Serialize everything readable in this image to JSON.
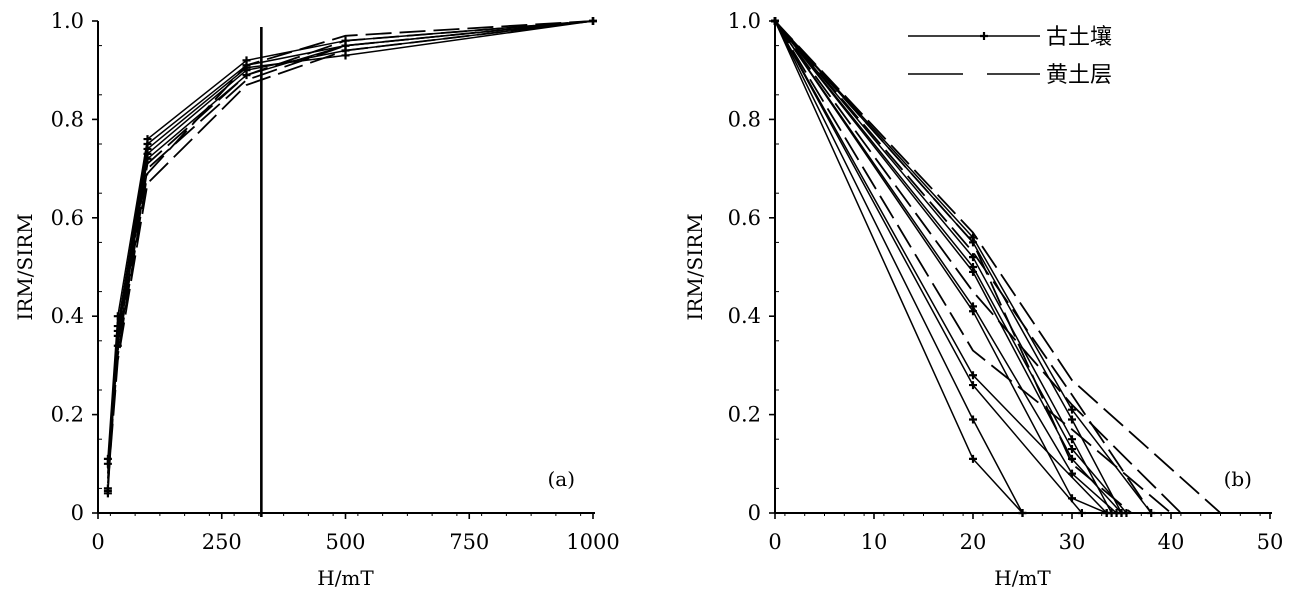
{
  "chart_data": [
    {
      "type": "line",
      "panel_label": "(a)",
      "xlabel": "H/mT",
      "ylabel": "IRM/SIRM",
      "xlim": [
        0,
        1000
      ],
      "ylim": [
        0,
        1.0
      ],
      "xticks": [
        "0",
        "250",
        "500",
        "750",
        "1000"
      ],
      "yticks": [
        "0",
        "0.2",
        "0.4",
        "0.6",
        "0.8",
        "1.0"
      ],
      "reference_line_x": 330,
      "series": [
        {
          "style": "solid",
          "markers": true,
          "x": [
            20,
            40,
            100,
            300,
            500,
            1000
          ],
          "y": [
            0.05,
            0.38,
            0.75,
            0.91,
            0.95,
            1.0
          ]
        },
        {
          "style": "solid",
          "markers": true,
          "x": [
            20,
            40,
            100,
            300,
            500,
            1000
          ],
          "y": [
            0.11,
            0.4,
            0.76,
            0.92,
            0.96,
            1.0
          ]
        },
        {
          "style": "solid",
          "markers": true,
          "x": [
            20,
            40,
            100,
            300,
            500,
            1000
          ],
          "y": [
            0.04,
            0.36,
            0.73,
            0.9,
            0.94,
            1.0
          ]
        },
        {
          "style": "solid",
          "markers": true,
          "x": [
            20,
            40,
            100,
            300,
            500,
            1000
          ],
          "y": [
            0.1,
            0.34,
            0.72,
            0.89,
            0.95,
            1.0
          ]
        },
        {
          "style": "solid",
          "markers": true,
          "x": [
            20,
            40,
            100,
            300,
            500,
            1000
          ],
          "y": [
            0.045,
            0.37,
            0.74,
            0.905,
            0.93,
            1.0
          ]
        },
        {
          "style": "dashed",
          "markers": false,
          "x": [
            20,
            40,
            100,
            300,
            500,
            1000
          ],
          "y": [
            0.09,
            0.33,
            0.7,
            0.88,
            0.95,
            1.0
          ]
        },
        {
          "style": "dashed",
          "markers": false,
          "x": [
            20,
            40,
            100,
            300,
            500,
            1000
          ],
          "y": [
            0.06,
            0.31,
            0.67,
            0.87,
            0.94,
            1.0
          ]
        },
        {
          "style": "dashed",
          "markers": false,
          "x": [
            20,
            40,
            100,
            300,
            500,
            1000
          ],
          "y": [
            0.08,
            0.35,
            0.71,
            0.89,
            0.96,
            1.0
          ]
        },
        {
          "style": "dashed",
          "markers": false,
          "x": [
            20,
            40,
            100,
            300,
            500,
            1000
          ],
          "y": [
            0.07,
            0.32,
            0.69,
            0.91,
            0.97,
            1.0
          ]
        }
      ]
    },
    {
      "type": "line",
      "panel_label": "(b)",
      "xlabel": "H/mT",
      "ylabel": "IRM/SIRM",
      "xlim": [
        0,
        50
      ],
      "ylim": [
        0,
        1.0
      ],
      "xticks": [
        "0",
        "10",
        "20",
        "30",
        "40",
        "50"
      ],
      "yticks": [
        "0",
        "0.2",
        "0.4",
        "0.6",
        "0.8",
        "1.0"
      ],
      "legend": [
        {
          "label": "古土壤",
          "style": "solid",
          "markers": true
        },
        {
          "label": "黄土层",
          "style": "dashed",
          "markers": false
        }
      ],
      "legend_position": "top",
      "series": [
        {
          "style": "solid",
          "markers": true,
          "x": [
            0,
            20,
            25
          ],
          "y": [
            1.0,
            0.11,
            0.0
          ]
        },
        {
          "style": "solid",
          "markers": true,
          "x": [
            0,
            20,
            25
          ],
          "y": [
            1.0,
            0.19,
            0.0
          ]
        },
        {
          "style": "solid",
          "markers": true,
          "x": [
            0,
            20,
            31
          ],
          "y": [
            1.0,
            0.26,
            0.0
          ]
        },
        {
          "style": "solid",
          "markers": true,
          "x": [
            0,
            20,
            33.5
          ],
          "y": [
            1.0,
            0.28,
            0.0
          ]
        },
        {
          "style": "solid",
          "markers": true,
          "x": [
            0,
            20,
            30,
            33.5
          ],
          "y": [
            1.0,
            0.41,
            0.03,
            0.0
          ]
        },
        {
          "style": "solid",
          "markers": true,
          "x": [
            0,
            20,
            30,
            34.5
          ],
          "y": [
            1.0,
            0.42,
            0.08,
            0.0
          ]
        },
        {
          "style": "solid",
          "markers": true,
          "x": [
            0,
            20,
            30,
            35
          ],
          "y": [
            1.0,
            0.49,
            0.11,
            0.0
          ]
        },
        {
          "style": "solid",
          "markers": true,
          "x": [
            0,
            20,
            30,
            35.5
          ],
          "y": [
            1.0,
            0.5,
            0.13,
            0.0
          ]
        },
        {
          "style": "solid",
          "markers": true,
          "x": [
            0,
            20,
            30,
            34
          ],
          "y": [
            1.0,
            0.52,
            0.15,
            0.0
          ]
        },
        {
          "style": "solid",
          "markers": true,
          "x": [
            0,
            20,
            30,
            35
          ],
          "y": [
            1.0,
            0.55,
            0.19,
            0.0
          ]
        },
        {
          "style": "solid",
          "markers": true,
          "x": [
            0,
            20,
            30,
            38
          ],
          "y": [
            1.0,
            0.56,
            0.21,
            0.0
          ]
        },
        {
          "style": "dashed",
          "markers": false,
          "x": [
            0,
            20,
            30,
            45
          ],
          "y": [
            1.0,
            0.57,
            0.27,
            0.0
          ]
        },
        {
          "style": "dashed",
          "markers": false,
          "x": [
            0,
            20,
            30,
            41
          ],
          "y": [
            1.0,
            0.45,
            0.22,
            0.0
          ]
        },
        {
          "style": "dashed",
          "markers": false,
          "x": [
            0,
            20,
            30,
            40
          ],
          "y": [
            1.0,
            0.33,
            0.17,
            0.0
          ]
        },
        {
          "style": "dashed",
          "markers": false,
          "x": [
            0,
            20,
            30,
            38
          ],
          "y": [
            1.0,
            0.53,
            0.24,
            0.0
          ]
        },
        {
          "style": "dashed",
          "markers": false,
          "x": [
            0,
            20,
            30,
            36
          ],
          "y": [
            1.0,
            0.55,
            0.1,
            0.0
          ]
        }
      ]
    }
  ]
}
